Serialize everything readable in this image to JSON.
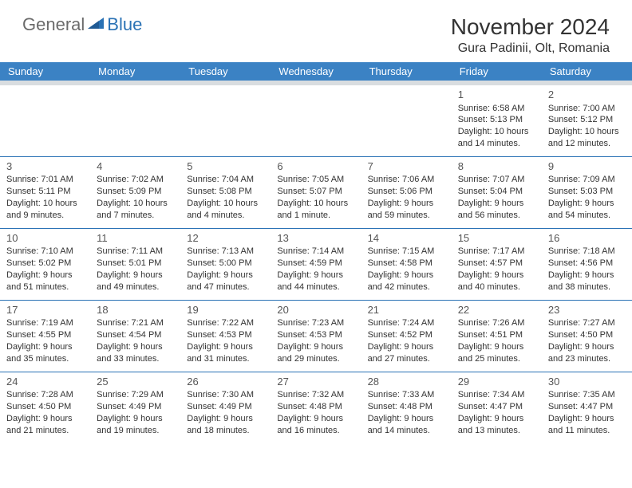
{
  "logo": {
    "general": "General",
    "blue": "Blue"
  },
  "title": "November 2024",
  "location": "Gura Padinii, Olt, Romania",
  "colors": {
    "header_bg": "#3b82c4",
    "header_sep": "#d9dde0",
    "cell_border": "#2a72b5",
    "logo_gray": "#6b6b6b",
    "logo_blue": "#2a72b5"
  },
  "day_headers": [
    "Sunday",
    "Monday",
    "Tuesday",
    "Wednesday",
    "Thursday",
    "Friday",
    "Saturday"
  ],
  "weeks": [
    [
      null,
      null,
      null,
      null,
      null,
      {
        "n": "1",
        "sr": "6:58 AM",
        "ss": "5:13 PM",
        "dl": "10 hours and 14 minutes."
      },
      {
        "n": "2",
        "sr": "7:00 AM",
        "ss": "5:12 PM",
        "dl": "10 hours and 12 minutes."
      }
    ],
    [
      {
        "n": "3",
        "sr": "7:01 AM",
        "ss": "5:11 PM",
        "dl": "10 hours and 9 minutes."
      },
      {
        "n": "4",
        "sr": "7:02 AM",
        "ss": "5:09 PM",
        "dl": "10 hours and 7 minutes."
      },
      {
        "n": "5",
        "sr": "7:04 AM",
        "ss": "5:08 PM",
        "dl": "10 hours and 4 minutes."
      },
      {
        "n": "6",
        "sr": "7:05 AM",
        "ss": "5:07 PM",
        "dl": "10 hours and 1 minute."
      },
      {
        "n": "7",
        "sr": "7:06 AM",
        "ss": "5:06 PM",
        "dl": "9 hours and 59 minutes."
      },
      {
        "n": "8",
        "sr": "7:07 AM",
        "ss": "5:04 PM",
        "dl": "9 hours and 56 minutes."
      },
      {
        "n": "9",
        "sr": "7:09 AM",
        "ss": "5:03 PM",
        "dl": "9 hours and 54 minutes."
      }
    ],
    [
      {
        "n": "10",
        "sr": "7:10 AM",
        "ss": "5:02 PM",
        "dl": "9 hours and 51 minutes."
      },
      {
        "n": "11",
        "sr": "7:11 AM",
        "ss": "5:01 PM",
        "dl": "9 hours and 49 minutes."
      },
      {
        "n": "12",
        "sr": "7:13 AM",
        "ss": "5:00 PM",
        "dl": "9 hours and 47 minutes."
      },
      {
        "n": "13",
        "sr": "7:14 AM",
        "ss": "4:59 PM",
        "dl": "9 hours and 44 minutes."
      },
      {
        "n": "14",
        "sr": "7:15 AM",
        "ss": "4:58 PM",
        "dl": "9 hours and 42 minutes."
      },
      {
        "n": "15",
        "sr": "7:17 AM",
        "ss": "4:57 PM",
        "dl": "9 hours and 40 minutes."
      },
      {
        "n": "16",
        "sr": "7:18 AM",
        "ss": "4:56 PM",
        "dl": "9 hours and 38 minutes."
      }
    ],
    [
      {
        "n": "17",
        "sr": "7:19 AM",
        "ss": "4:55 PM",
        "dl": "9 hours and 35 minutes."
      },
      {
        "n": "18",
        "sr": "7:21 AM",
        "ss": "4:54 PM",
        "dl": "9 hours and 33 minutes."
      },
      {
        "n": "19",
        "sr": "7:22 AM",
        "ss": "4:53 PM",
        "dl": "9 hours and 31 minutes."
      },
      {
        "n": "20",
        "sr": "7:23 AM",
        "ss": "4:53 PM",
        "dl": "9 hours and 29 minutes."
      },
      {
        "n": "21",
        "sr": "7:24 AM",
        "ss": "4:52 PM",
        "dl": "9 hours and 27 minutes."
      },
      {
        "n": "22",
        "sr": "7:26 AM",
        "ss": "4:51 PM",
        "dl": "9 hours and 25 minutes."
      },
      {
        "n": "23",
        "sr": "7:27 AM",
        "ss": "4:50 PM",
        "dl": "9 hours and 23 minutes."
      }
    ],
    [
      {
        "n": "24",
        "sr": "7:28 AM",
        "ss": "4:50 PM",
        "dl": "9 hours and 21 minutes."
      },
      {
        "n": "25",
        "sr": "7:29 AM",
        "ss": "4:49 PM",
        "dl": "9 hours and 19 minutes."
      },
      {
        "n": "26",
        "sr": "7:30 AM",
        "ss": "4:49 PM",
        "dl": "9 hours and 18 minutes."
      },
      {
        "n": "27",
        "sr": "7:32 AM",
        "ss": "4:48 PM",
        "dl": "9 hours and 16 minutes."
      },
      {
        "n": "28",
        "sr": "7:33 AM",
        "ss": "4:48 PM",
        "dl": "9 hours and 14 minutes."
      },
      {
        "n": "29",
        "sr": "7:34 AM",
        "ss": "4:47 PM",
        "dl": "9 hours and 13 minutes."
      },
      {
        "n": "30",
        "sr": "7:35 AM",
        "ss": "4:47 PM",
        "dl": "9 hours and 11 minutes."
      }
    ]
  ],
  "labels": {
    "sunrise": "Sunrise: ",
    "sunset": "Sunset: ",
    "daylight": "Daylight: "
  }
}
